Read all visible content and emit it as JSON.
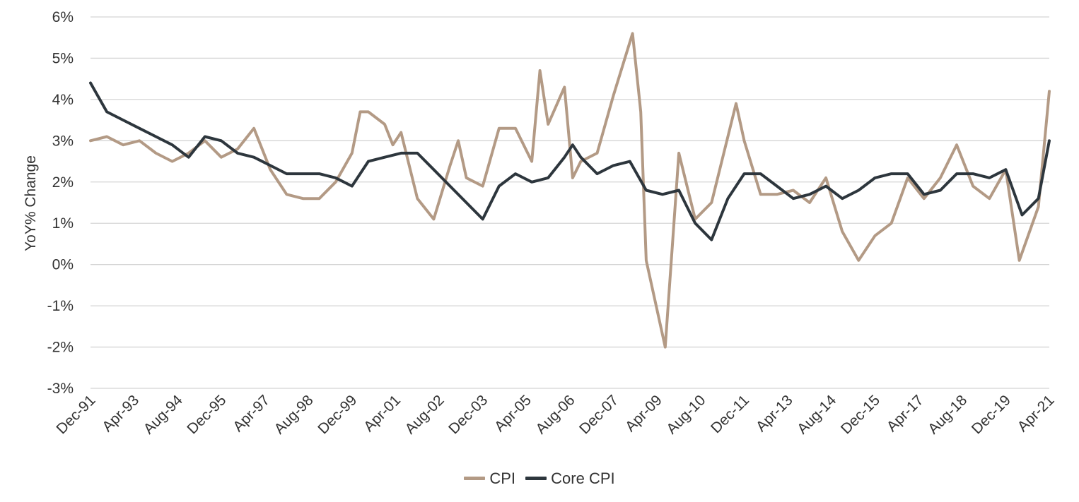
{
  "chart_data": {
    "type": "line",
    "title": "",
    "ylabel": "YoY% Change",
    "xlabel": "",
    "ylim": [
      -3,
      6
    ],
    "y_ticks": [
      "6%",
      "5%",
      "4%",
      "3%",
      "2%",
      "1%",
      "0%",
      "-1%",
      "-2%",
      "-3%"
    ],
    "y_tick_values": [
      6,
      5,
      4,
      3,
      2,
      1,
      0,
      -1,
      -2,
      -3
    ],
    "x_tick_labels": [
      "Dec-91",
      "Apr-93",
      "Aug-94",
      "Dec-95",
      "Apr-97",
      "Aug-98",
      "Dec-99",
      "Apr-01",
      "Aug-02",
      "Dec-03",
      "Apr-05",
      "Aug-06",
      "Dec-07",
      "Apr-09",
      "Aug-10",
      "Dec-11",
      "Apr-13",
      "Aug-14",
      "Dec-15",
      "Apr-17",
      "Aug-18",
      "Dec-19",
      "Apr-21"
    ],
    "grid": true,
    "legend_position": "bottom",
    "colors": {
      "CPI": "#b39a85",
      "Core CPI": "#2d363d",
      "grid": "#d4d4d4"
    },
    "series": [
      {
        "name": "CPI",
        "x": [
          "Dec-91",
          "Jun-92",
          "Dec-92",
          "Jun-93",
          "Dec-93",
          "Jun-94",
          "Dec-94",
          "Jun-95",
          "Dec-95",
          "Jun-96",
          "Dec-96",
          "Jun-97",
          "Dec-97",
          "Jun-98",
          "Dec-98",
          "Jun-99",
          "Dec-99",
          "Mar-00",
          "Jun-00",
          "Dec-00",
          "Mar-01",
          "Jun-01",
          "Dec-01",
          "Jun-02",
          "Dec-02",
          "Mar-03",
          "Jun-03",
          "Dec-03",
          "Jun-04",
          "Dec-04",
          "Jun-05",
          "Sep-05",
          "Dec-05",
          "Jun-06",
          "Sep-06",
          "Dec-06",
          "Jun-07",
          "Dec-07",
          "Jul-08",
          "Oct-08",
          "Dec-08",
          "Jul-09",
          "Dec-09",
          "Jun-10",
          "Dec-10",
          "Sep-11",
          "Dec-11",
          "Jun-12",
          "Dec-12",
          "Jun-13",
          "Dec-13",
          "Jun-14",
          "Dec-14",
          "Jun-15",
          "Dec-15",
          "Jun-16",
          "Dec-16",
          "Jun-17",
          "Dec-17",
          "Jun-18",
          "Dec-18",
          "Jun-19",
          "Dec-19",
          "May-20",
          "Dec-20",
          "Apr-21"
        ],
        "values": [
          3.0,
          3.1,
          2.9,
          3.0,
          2.7,
          2.5,
          2.7,
          3.0,
          2.6,
          2.8,
          3.3,
          2.3,
          1.7,
          1.6,
          1.6,
          2.0,
          2.7,
          3.7,
          3.7,
          3.4,
          2.9,
          3.2,
          1.6,
          1.1,
          2.4,
          3.0,
          2.1,
          1.9,
          3.3,
          3.3,
          2.5,
          4.7,
          3.4,
          4.3,
          2.1,
          2.5,
          2.7,
          4.1,
          5.6,
          3.7,
          0.1,
          -2.0,
          2.7,
          1.1,
          1.5,
          3.9,
          3.0,
          1.7,
          1.7,
          1.8,
          1.5,
          2.1,
          0.8,
          0.1,
          0.7,
          1.0,
          2.1,
          1.6,
          2.1,
          2.9,
          1.9,
          1.6,
          2.3,
          0.1,
          1.4,
          4.2
        ]
      },
      {
        "name": "Core CPI",
        "x": [
          "Dec-91",
          "Jun-92",
          "Dec-92",
          "Jun-93",
          "Dec-93",
          "Jun-94",
          "Dec-94",
          "Jun-95",
          "Dec-95",
          "Jun-96",
          "Dec-96",
          "Jun-97",
          "Dec-97",
          "Jun-98",
          "Dec-98",
          "Jun-99",
          "Dec-99",
          "Jun-00",
          "Dec-00",
          "Jun-01",
          "Dec-01",
          "Jun-02",
          "Dec-02",
          "Jun-03",
          "Dec-03",
          "Jun-04",
          "Dec-04",
          "Jun-05",
          "Dec-05",
          "Jun-06",
          "Sep-06",
          "Dec-06",
          "Jun-07",
          "Dec-07",
          "Jun-08",
          "Dec-08",
          "Jun-09",
          "Dec-09",
          "Jun-10",
          "Dec-10",
          "Jun-11",
          "Dec-11",
          "Jun-12",
          "Dec-12",
          "Jun-13",
          "Dec-13",
          "Jun-14",
          "Dec-14",
          "Jun-15",
          "Dec-15",
          "Jun-16",
          "Dec-16",
          "Jun-17",
          "Dec-17",
          "Jun-18",
          "Dec-18",
          "Jun-19",
          "Dec-19",
          "Jun-20",
          "Dec-20",
          "Apr-21"
        ],
        "values": [
          4.4,
          3.7,
          3.5,
          3.3,
          3.1,
          2.9,
          2.6,
          3.1,
          3.0,
          2.7,
          2.6,
          2.4,
          2.2,
          2.2,
          2.2,
          2.1,
          1.9,
          2.5,
          2.6,
          2.7,
          2.7,
          2.3,
          1.9,
          1.5,
          1.1,
          1.9,
          2.2,
          2.0,
          2.1,
          2.6,
          2.9,
          2.6,
          2.2,
          2.4,
          2.5,
          1.8,
          1.7,
          1.8,
          1.0,
          0.6,
          1.6,
          2.2,
          2.2,
          1.9,
          1.6,
          1.7,
          1.9,
          1.6,
          1.8,
          2.1,
          2.2,
          2.2,
          1.7,
          1.8,
          2.2,
          2.2,
          2.1,
          2.3,
          1.2,
          1.6,
          3.0
        ]
      }
    ]
  }
}
